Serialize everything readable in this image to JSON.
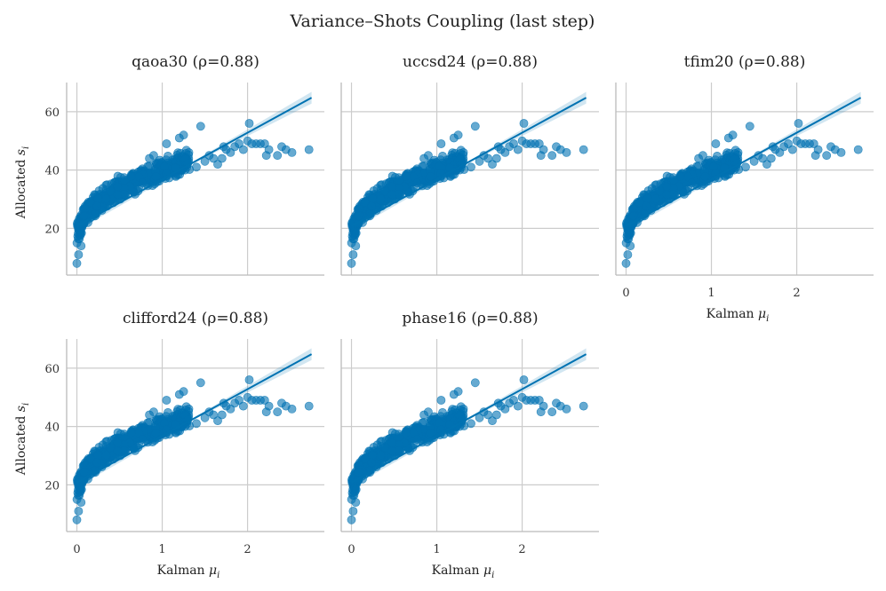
{
  "figure": {
    "title": "Variance–Shots Coupling (last step)"
  },
  "colors": {
    "points": "#0072b2",
    "line": "#0072b2",
    "grid": "#cccccc"
  },
  "chart_data": [
    {
      "type": "scatter",
      "title": "qaoa30",
      "rho_label": "(ρ=0.88)",
      "xlabel": "",
      "ylabel": "Allocated s_i",
      "xlim": [
        -0.12,
        2.9
      ],
      "ylim": [
        4,
        70
      ],
      "xticks": [
        0,
        1,
        2
      ],
      "yticks": [
        20,
        40,
        60
      ],
      "regression": {
        "slope": 16.0,
        "intercept": 20.8,
        "x_range": [
          0,
          2.75
        ]
      },
      "series": [
        {
          "name": "observations",
          "x": [],
          "y": []
        }
      ]
    },
    {
      "type": "scatter",
      "title": "uccsd24",
      "rho_label": "(ρ=0.88)",
      "xlabel": "",
      "ylabel": "",
      "xlim": [
        -0.12,
        2.9
      ],
      "ylim": [
        4,
        70
      ],
      "xticks": [
        0,
        1,
        2
      ],
      "yticks": [
        20,
        40,
        60
      ],
      "regression": {
        "slope": 16.0,
        "intercept": 20.8,
        "x_range": [
          0,
          2.75
        ]
      },
      "series": [
        {
          "name": "observations",
          "x": [],
          "y": []
        }
      ]
    },
    {
      "type": "scatter",
      "title": "tfim20",
      "rho_label": "(ρ=0.88)",
      "xlabel": "Kalman μ_i",
      "ylabel": "",
      "xlim": [
        -0.12,
        2.9
      ],
      "ylim": [
        4,
        70
      ],
      "xticks": [
        0,
        1,
        2
      ],
      "yticks": [
        20,
        40,
        60
      ],
      "regression": {
        "slope": 16.0,
        "intercept": 20.8,
        "x_range": [
          0,
          2.75
        ]
      },
      "series": [
        {
          "name": "observations",
          "x": [],
          "y": []
        }
      ]
    },
    {
      "type": "scatter",
      "title": "clifford24",
      "rho_label": "(ρ=0.88)",
      "xlabel": "Kalman μ_i",
      "ylabel": "Allocated s_i",
      "xlim": [
        -0.12,
        2.9
      ],
      "ylim": [
        4,
        70
      ],
      "xticks": [
        0,
        1,
        2
      ],
      "yticks": [
        20,
        40,
        60
      ],
      "regression": {
        "slope": 16.0,
        "intercept": 20.8,
        "x_range": [
          0,
          2.75
        ]
      },
      "series": [
        {
          "name": "observations",
          "x": [],
          "y": []
        }
      ]
    },
    {
      "type": "scatter",
      "title": "phase16",
      "rho_label": "(ρ=0.88)",
      "xlabel": "Kalman μ_i",
      "ylabel": "",
      "xlim": [
        -0.12,
        2.9
      ],
      "ylim": [
        4,
        70
      ],
      "xticks": [
        0,
        1,
        2
      ],
      "yticks": [
        20,
        40,
        60
      ],
      "regression": {
        "slope": 16.0,
        "intercept": 20.8,
        "x_range": [
          0,
          2.75
        ]
      },
      "series": [
        {
          "name": "observations",
          "x": [],
          "y": []
        }
      ]
    }
  ]
}
